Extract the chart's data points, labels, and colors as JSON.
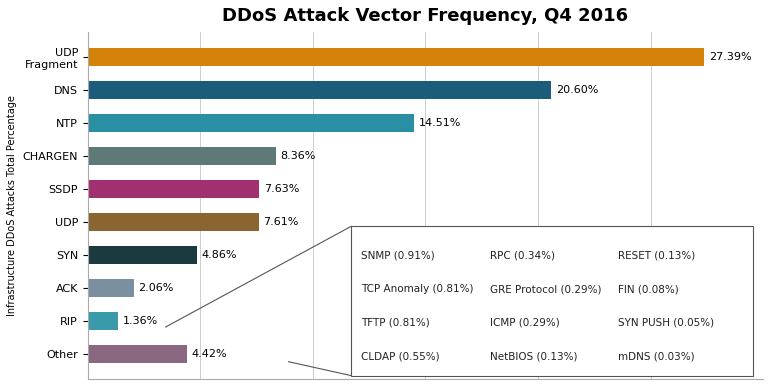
{
  "title": "DDoS Attack Vector Frequency, Q4 2016",
  "ylabel": "Infrastructure DDoS Attacks Total Percentage",
  "categories": [
    "UDP\nFragment",
    "DNS",
    "NTP",
    "CHARGEN",
    "SSDP",
    "UDP",
    "SYN",
    "ACK",
    "RIP",
    "Other"
  ],
  "values": [
    27.39,
    20.6,
    14.51,
    8.36,
    7.63,
    7.61,
    4.86,
    2.06,
    1.36,
    4.42
  ],
  "colors": [
    "#D4820A",
    "#1B5C7A",
    "#2A8FA3",
    "#5E7A78",
    "#A03070",
    "#8B6530",
    "#1A3A40",
    "#7A8FA0",
    "#3A9AAA",
    "#8A6880"
  ],
  "bar_labels": [
    "27.39%",
    "20.60%",
    "14.51%",
    "8.36%",
    "7.63%",
    "7.61%",
    "4.86%",
    "2.06%",
    "1.36%",
    "4.42%"
  ],
  "legend_items": [
    [
      "SNMP (0.91%)",
      "RPC (0.34%)",
      "RESET (0.13%)"
    ],
    [
      "TCP Anomaly (0.81%)",
      "GRE Protocol (0.29%)",
      "FIN (0.08%)"
    ],
    [
      "TFTP (0.81%)",
      "ICMP (0.29%)",
      "SYN PUSH (0.05%)"
    ],
    [
      "CLDAP (0.55%)",
      "NetBIOS (0.13%)",
      "mDNS (0.03%)"
    ]
  ],
  "xlim": [
    0,
    30
  ],
  "background_color": "#FFFFFF",
  "title_fontsize": 13,
  "label_fontsize": 8,
  "tick_fontsize": 8,
  "legend_fontsize": 7.5,
  "ylabel_fontsize": 7
}
